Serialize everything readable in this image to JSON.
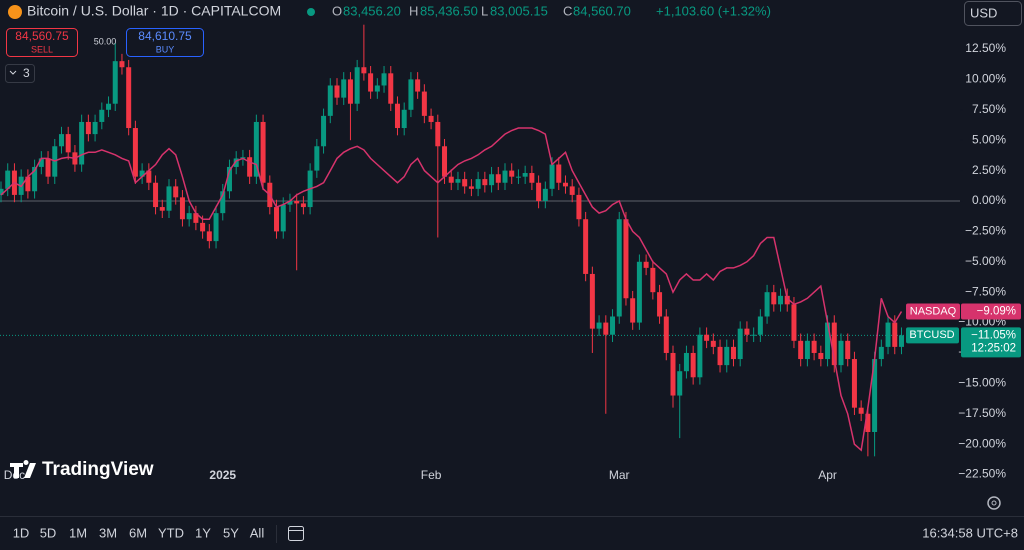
{
  "header": {
    "symbol": "Bitcoin / U.S. Dollar · 1D · CAPITALCOM",
    "ohlc": [
      {
        "label": "O",
        "value": "83,456.20"
      },
      {
        "label": "H",
        "value": "85,436.50"
      },
      {
        "label": "L",
        "value": "83,005.15"
      },
      {
        "label": "C",
        "value": "84,560.70"
      }
    ],
    "change": "+1,103.60 (+1.32%)",
    "currency": "USD"
  },
  "trade": {
    "sell_price": "84,560.75",
    "sell": "SELL",
    "spread": "50.00",
    "buy_price": "84,610.75",
    "buy": "BUY"
  },
  "indicators": 3,
  "logo": "TradingView",
  "toolbar": {
    "ranges": [
      "1D",
      "5D",
      "1M",
      "3M",
      "6M",
      "YTD",
      "1Y",
      "5Y",
      "All"
    ],
    "time": "16:34:58 UTC+8"
  },
  "chart_data": {
    "type": "candlestick",
    "name": "BTCUSD",
    "up_color": "#089981",
    "down_color": "#f23645",
    "last_label": "−11.05%",
    "countdown": "12:25:02",
    "categories": [
      null,
      null,
      "Dec",
      null,
      null,
      null,
      null,
      null,
      null,
      null,
      null,
      null,
      null,
      null,
      null,
      null,
      null,
      null,
      null,
      null,
      null,
      null,
      null,
      null,
      null,
      null,
      null,
      null,
      null,
      null,
      null,
      null,
      null,
      "2025",
      null,
      null,
      null,
      null,
      null,
      null,
      null,
      null,
      null,
      null,
      null,
      null,
      null,
      null,
      null,
      null,
      null,
      null,
      null,
      null,
      null,
      null,
      null,
      null,
      null,
      null,
      null,
      null,
      null,
      null,
      "Feb",
      null,
      null,
      null,
      null,
      null,
      null,
      null,
      null,
      null,
      null,
      null,
      null,
      null,
      null,
      null,
      null,
      null,
      null,
      null,
      null,
      null,
      null,
      null,
      null,
      null,
      null,
      null,
      "Mar",
      null,
      null,
      null,
      null,
      null,
      null,
      null,
      null,
      null,
      null,
      null,
      null,
      null,
      null,
      null,
      null,
      null,
      null,
      null,
      null,
      null,
      null,
      null,
      null,
      null,
      null,
      null,
      null,
      null,
      null,
      "Apr",
      null,
      null,
      null,
      null,
      null,
      null,
      null,
      null,
      null,
      null,
      null
    ],
    "open": [
      0.5,
      1.0,
      2.5,
      0.5,
      2.0,
      0.8,
      2.8,
      3.5,
      2.0,
      4.5,
      5.5,
      4.0,
      3.0,
      6.5,
      5.5,
      6.5,
      7.5,
      8.0,
      11.5,
      11.0,
      6.0,
      2.0,
      2.5,
      1.5,
      -0.5,
      -0.8,
      1.2,
      0.3,
      -1.5,
      -1.0,
      -1.8,
      -2.5,
      -3.3,
      -1.0,
      0.8,
      2.8,
      3.5,
      3.6,
      2.0,
      6.5,
      1.5,
      -0.5,
      -2.5,
      -0.3,
      0.0,
      -0.2,
      -0.5,
      2.5,
      4.5,
      7.0,
      9.5,
      8.5,
      10.0,
      8.0,
      11.0,
      10.5,
      9.0,
      9.5,
      10.5,
      8.0,
      6.0,
      7.5,
      10.0,
      9.0,
      7.0,
      6.5,
      4.5,
      2.0,
      1.5,
      1.8,
      1.2,
      1.0,
      1.8,
      1.3,
      2.2,
      1.5,
      2.5,
      2.0,
      2.0,
      2.3,
      1.5,
      0.0,
      1.0,
      3.0,
      1.5,
      1.2,
      0.5,
      -1.5,
      -6.0,
      -10.5,
      -10.0,
      -11.0,
      -9.5,
      -1.5,
      -8.0,
      -10.0,
      -5.0,
      -5.5,
      -7.5,
      -9.5,
      -12.5,
      -16.0,
      -14.0,
      -12.5,
      -14.5,
      -11.0,
      -11.5,
      -12.0,
      -13.5,
      -12.0,
      -13.0,
      -10.5,
      -11.0,
      -11.0,
      -9.5,
      -7.5,
      -8.5,
      -7.8,
      -8.5,
      -11.5,
      -13.0,
      -11.5,
      -12.5,
      -13.0,
      -10.0,
      -13.5,
      -11.5,
      -13.0,
      -17.0,
      -17.5,
      -19.0,
      -13.0,
      -12.0,
      -10.0,
      -12.0
    ],
    "high": [
      1.6,
      3.1,
      3.1,
      2.6,
      2.6,
      3.4,
      4.1,
      4.1,
      5.1,
      6.1,
      6.1,
      4.6,
      7.1,
      7.1,
      7.1,
      8.1,
      8.6,
      13.0,
      12.1,
      11.6,
      6.6,
      3.1,
      3.1,
      2.1,
      0.1,
      1.8,
      1.8,
      0.9,
      -0.4,
      -0.4,
      -1.2,
      -1.9,
      -0.4,
      1.4,
      3.4,
      4.1,
      4.2,
      4.2,
      7.1,
      7.1,
      2.1,
      0.1,
      0.3,
      0.6,
      0.6,
      0.4,
      3.1,
      5.1,
      7.6,
      10.1,
      10.1,
      10.6,
      10.6,
      11.6,
      14.5,
      11.1,
      10.1,
      11.1,
      11.1,
      8.6,
      8.1,
      10.6,
      10.6,
      9.6,
      7.6,
      7.1,
      5.1,
      2.6,
      2.4,
      2.4,
      1.8,
      2.4,
      2.4,
      2.8,
      2.8,
      3.1,
      3.1,
      2.6,
      2.9,
      2.9,
      2.1,
      1.6,
      3.6,
      3.6,
      2.1,
      1.8,
      1.1,
      -0.9,
      -5.4,
      -9.4,
      -9.4,
      -8.9,
      -0.9,
      -0.9,
      -7.4,
      -4.4,
      -4.4,
      -4.9,
      -6.9,
      -8.9,
      -11.9,
      -13.4,
      -11.9,
      -11.9,
      -10.4,
      -10.4,
      -10.9,
      -11.4,
      -11.4,
      -11.4,
      -9.9,
      -9.9,
      -10.4,
      -8.9,
      -6.9,
      -6.9,
      -7.2,
      -7.2,
      -7.9,
      -10.9,
      -10.9,
      -10.9,
      -11.9,
      -9.4,
      -9.4,
      -10.9,
      -10.9,
      -12.4,
      -16.4,
      -16.9,
      -12.4,
      -11.4,
      -9.4,
      -9.4,
      -10.4
    ],
    "low": [
      -0.1,
      0.4,
      -0.1,
      -0.1,
      0.2,
      0.2,
      2.2,
      1.4,
      1.4,
      3.9,
      3.4,
      2.4,
      2.4,
      4.9,
      4.9,
      5.9,
      6.9,
      7.4,
      10.4,
      5.4,
      1.4,
      1.4,
      0.9,
      -1.1,
      -1.4,
      -1.4,
      -0.3,
      -2.1,
      -2.1,
      -2.4,
      -3.1,
      -3.9,
      -3.9,
      -1.6,
      0.2,
      2.2,
      2.9,
      1.4,
      1.4,
      0.9,
      -1.1,
      -3.1,
      -3.1,
      -0.9,
      -5.7,
      -1.1,
      -1.1,
      1.9,
      3.9,
      6.4,
      7.9,
      7.9,
      5.0,
      7.4,
      9.9,
      8.4,
      8.4,
      8.9,
      7.4,
      5.4,
      5.4,
      6.9,
      8.4,
      6.4,
      5.9,
      -3.0,
      1.4,
      0.9,
      0.9,
      0.6,
      0.4,
      0.4,
      0.7,
      0.7,
      0.9,
      0.9,
      1.4,
      1.4,
      1.4,
      0.9,
      -0.6,
      -0.6,
      0.4,
      0.9,
      0.6,
      -0.1,
      -2.1,
      -6.6,
      -12.5,
      -11.1,
      -17.5,
      -11.6,
      -10.1,
      -8.6,
      -10.6,
      -10.6,
      -6.1,
      -8.1,
      -10.1,
      -13.1,
      -17.0,
      -19.5,
      -14.6,
      -15.1,
      -15.1,
      -12.1,
      -12.6,
      -14.1,
      -14.1,
      -13.6,
      -13.6,
      -11.6,
      -11.6,
      -11.6,
      -10.1,
      -9.1,
      -9.1,
      -9.1,
      -12.1,
      -13.6,
      -13.6,
      -13.1,
      -13.6,
      -13.6,
      -14.1,
      -14.1,
      -13.6,
      -17.6,
      -18.1,
      -21.0,
      -21.0,
      -13.6,
      -12.6,
      -12.6,
      -12.6
    ],
    "close": [
      1.0,
      2.5,
      0.5,
      2.0,
      0.8,
      2.8,
      3.5,
      2.0,
      4.5,
      5.5,
      4.0,
      3.0,
      6.5,
      5.5,
      6.5,
      7.5,
      8.0,
      11.5,
      11.0,
      6.0,
      2.0,
      2.5,
      1.5,
      -0.5,
      -0.8,
      1.2,
      0.3,
      -1.5,
      -1.0,
      -1.8,
      -2.5,
      -3.3,
      -1.0,
      0.8,
      2.8,
      3.5,
      3.6,
      2.0,
      6.5,
      1.5,
      -0.5,
      -2.5,
      -0.3,
      0.0,
      -0.2,
      -0.5,
      2.5,
      4.5,
      7.0,
      9.5,
      8.5,
      10.0,
      8.0,
      11.0,
      10.5,
      9.0,
      9.5,
      10.5,
      8.0,
      6.0,
      7.5,
      10.0,
      9.0,
      7.0,
      6.5,
      4.5,
      2.0,
      1.5,
      1.8,
      1.2,
      1.0,
      1.8,
      1.3,
      2.2,
      1.5,
      2.5,
      2.0,
      2.0,
      2.3,
      1.5,
      0.0,
      1.0,
      3.0,
      1.5,
      1.2,
      0.5,
      -1.5,
      -6.0,
      -10.5,
      -10.0,
      -11.0,
      -9.5,
      -1.5,
      -8.0,
      -10.0,
      -5.0,
      -5.5,
      -7.5,
      -9.5,
      -12.5,
      -16.0,
      -14.0,
      -12.5,
      -14.5,
      -11.0,
      -11.5,
      -12.0,
      -13.5,
      -12.0,
      -13.0,
      -10.5,
      -11.0,
      -11.0,
      -9.5,
      -7.5,
      -8.5,
      -7.8,
      -8.5,
      -11.5,
      -13.0,
      -11.5,
      -12.5,
      -13.0,
      -10.0,
      -13.5,
      -11.5,
      -13.0,
      -17.0,
      -17.5,
      -19.0,
      -13.0,
      -12.0,
      -10.0,
      -12.0,
      -11.05
    ],
    "compare": {
      "type": "line",
      "name": "NASDAQ",
      "color": "#d6336c",
      "last_label": "−9.09%",
      "values": [
        0.5,
        1.0,
        1.5,
        1.2,
        2.0,
        2.5,
        3.5,
        3.5,
        3.3,
        3.5,
        3.6,
        3.5,
        3.8,
        4.0,
        4.0,
        4.2,
        4.0,
        3.8,
        3.5,
        3.3,
        1.5,
        2.0,
        2.5,
        3.0,
        3.8,
        4.3,
        3.8,
        2.0,
        0.0,
        -1.0,
        -1.5,
        -1.5,
        -0.5,
        0.5,
        2.5,
        3.3,
        3.5,
        3.2,
        3.0,
        1.0,
        0.5,
        -0.5,
        -0.3,
        0.0,
        0.5,
        0.8,
        1.0,
        1.2,
        1.5,
        2.5,
        3.5,
        4.0,
        4.3,
        4.5,
        4.2,
        3.5,
        3.0,
        2.5,
        2.0,
        1.5,
        2.0,
        3.0,
        3.5,
        2.5,
        2.0,
        1.5,
        2.0,
        2.5,
        3.0,
        3.3,
        3.5,
        3.8,
        4.2,
        4.5,
        5.0,
        5.5,
        5.8,
        6.0,
        6.0,
        6.0,
        5.8,
        5.5,
        3.0,
        3.5,
        4.0,
        2.5,
        1.5,
        0.5,
        -0.5,
        -1.0,
        -0.8,
        -0.3,
        0.0,
        -1.5,
        -2.5,
        -3.0,
        -4.0,
        -5.0,
        -5.5,
        -6.0,
        -7.5,
        -6.5,
        -6.0,
        -6.5,
        -6.5,
        -6.0,
        -6.5,
        -5.8,
        -5.5,
        -5.5,
        -5.3,
        -5.0,
        -4.5,
        -3.5,
        -3.0,
        -3.0,
        -5.5,
        -8.0,
        -8.5,
        -8.3,
        -8.0,
        -7.5,
        -7.0,
        -10.0,
        -13.0,
        -16.0,
        -17.5,
        -20.0,
        -20.5,
        -17.0,
        -13.0,
        -8.0,
        -9.5,
        -10.0,
        -9.09
      ]
    },
    "baseline": 0,
    "ylim": [
      -23.77,
      16.53
    ],
    "yticks": [
      {
        "value": 12.5,
        "label": "12.50%"
      },
      {
        "value": 10,
        "label": "10.00%"
      },
      {
        "value": 7.5,
        "label": "7.50%"
      },
      {
        "value": 5,
        "label": "5.00%"
      },
      {
        "value": 2.5,
        "label": "2.50%"
      },
      {
        "value": 0,
        "label": "0.00%"
      },
      {
        "value": -2.5,
        "label": "−2.50%"
      },
      {
        "value": -5,
        "label": "−5.00%"
      },
      {
        "value": -7.5,
        "label": "−7.50%"
      },
      {
        "value": -10,
        "label": "−10.00%"
      },
      {
        "value": -12.5,
        "label": "−12.50%"
      },
      {
        "value": -15,
        "label": "−15.00%"
      },
      {
        "value": -17.5,
        "label": "−17.50%"
      },
      {
        "value": -20,
        "label": "−20.00%"
      },
      {
        "value": -22.5,
        "label": "−22.50%"
      }
    ]
  }
}
